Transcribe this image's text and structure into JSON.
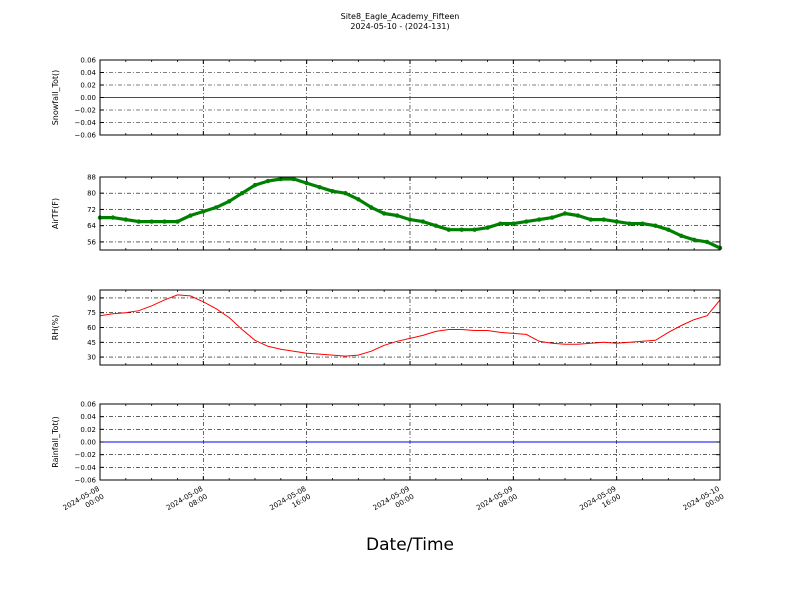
{
  "figure": {
    "title": "Site8_Eagle_Academy_Fifteen",
    "subtitle": "2024-05-10 - (2024-131)",
    "xlabel": "Date/Time"
  },
  "chart_data": [
    {
      "type": "line",
      "ylabel": "Snowfall_Tot()",
      "ylim": [
        -0.06,
        0.06
      ],
      "yticks": [
        -0.06,
        -0.04,
        -0.02,
        0.0,
        0.02,
        0.04,
        0.06
      ],
      "ytick_labels": [
        "−0.06",
        "−0.04",
        "−0.02",
        "0.00",
        "0.02",
        "0.04",
        "0.06"
      ],
      "xlim_hours": [
        0,
        48
      ],
      "grid": true,
      "series": [
        {
          "color": "#ff0000",
          "marker": "none",
          "x": [
            0,
            48
          ],
          "y": [
            0,
            0
          ]
        }
      ]
    },
    {
      "type": "line",
      "ylabel": "AirTF(F)",
      "ylim": [
        52,
        88
      ],
      "yticks": [
        56,
        64,
        72,
        80,
        88
      ],
      "ytick_labels": [
        "56",
        "64",
        "72",
        "80",
        "88"
      ],
      "xlim_hours": [
        0,
        48
      ],
      "grid": true,
      "series": [
        {
          "color": "#008000",
          "marker": "point",
          "x": [
            0,
            1,
            2,
            3,
            4,
            5,
            6,
            7,
            8,
            9,
            10,
            11,
            12,
            13,
            14,
            15,
            16,
            17,
            18,
            19,
            20,
            21,
            22,
            23,
            24,
            25,
            26,
            27,
            28,
            29,
            30,
            31,
            32,
            33,
            34,
            35,
            36,
            37,
            38,
            39,
            40,
            41,
            42,
            43,
            44,
            45,
            46,
            47,
            48
          ],
          "y": [
            68,
            68,
            67,
            66,
            66,
            66,
            66,
            69,
            71,
            73,
            76,
            80,
            84,
            86,
            87,
            87,
            85,
            83,
            81,
            80,
            77,
            73,
            70,
            69,
            67,
            66,
            64,
            62,
            62,
            62,
            63,
            65,
            65,
            66,
            67,
            68,
            70,
            69,
            67,
            67,
            66,
            65,
            65,
            64,
            62,
            59,
            57,
            56,
            53
          ]
        }
      ]
    },
    {
      "type": "line",
      "ylabel": "RH(%)",
      "ylim": [
        22,
        98
      ],
      "yticks": [
        30,
        45,
        60,
        75,
        90
      ],
      "ytick_labels": [
        "30",
        "45",
        "60",
        "75",
        "90"
      ],
      "xlim_hours": [
        0,
        48
      ],
      "grid": true,
      "series": [
        {
          "color": "#ff0000",
          "marker": "none",
          "x": [
            0,
            1,
            2,
            3,
            4,
            5,
            6,
            7,
            8,
            9,
            10,
            11,
            12,
            13,
            14,
            15,
            16,
            17,
            18,
            19,
            20,
            21,
            22,
            23,
            24,
            25,
            26,
            27,
            28,
            29,
            30,
            31,
            32,
            33,
            34,
            35,
            36,
            37,
            38,
            39,
            40,
            41,
            42,
            43,
            44,
            45,
            46,
            47,
            48
          ],
          "y": [
            72,
            74,
            75,
            77,
            82,
            88,
            93,
            92,
            86,
            79,
            70,
            58,
            47,
            41,
            38,
            36,
            34,
            33,
            32,
            31,
            32,
            36,
            42,
            46,
            49,
            52,
            56,
            58,
            58,
            57,
            57,
            55,
            54,
            53,
            46,
            44,
            43,
            43,
            44,
            45,
            44,
            45,
            46,
            47,
            55,
            62,
            68,
            72,
            88
          ]
        }
      ]
    },
    {
      "type": "line",
      "ylabel": "Rainfall_Tot()",
      "ylim": [
        -0.06,
        0.06
      ],
      "yticks": [
        -0.06,
        -0.04,
        -0.02,
        0.0,
        0.02,
        0.04,
        0.06
      ],
      "ytick_labels": [
        "−0.06",
        "−0.04",
        "−0.02",
        "0.00",
        "0.02",
        "0.04",
        "0.06"
      ],
      "xlim_hours": [
        0,
        48
      ],
      "grid": true,
      "series": [
        {
          "color": "#0000ff",
          "marker": "none",
          "x": [
            0,
            48
          ],
          "y": [
            0,
            0
          ]
        }
      ]
    }
  ],
  "x_ticks": [
    {
      "hours": 0,
      "line1": "2024-05-08",
      "line2": "00:00"
    },
    {
      "hours": 8,
      "line1": "2024-05-08",
      "line2": "08:00"
    },
    {
      "hours": 16,
      "line1": "2024-05-08",
      "line2": "16:00"
    },
    {
      "hours": 24,
      "line1": "2024-05-09",
      "line2": "00:00"
    },
    {
      "hours": 32,
      "line1": "2024-05-09",
      "line2": "08:00"
    },
    {
      "hours": 40,
      "line1": "2024-05-09",
      "line2": "16:00"
    },
    {
      "hours": 48,
      "line1": "2024-05-10",
      "line2": "00:00"
    }
  ]
}
